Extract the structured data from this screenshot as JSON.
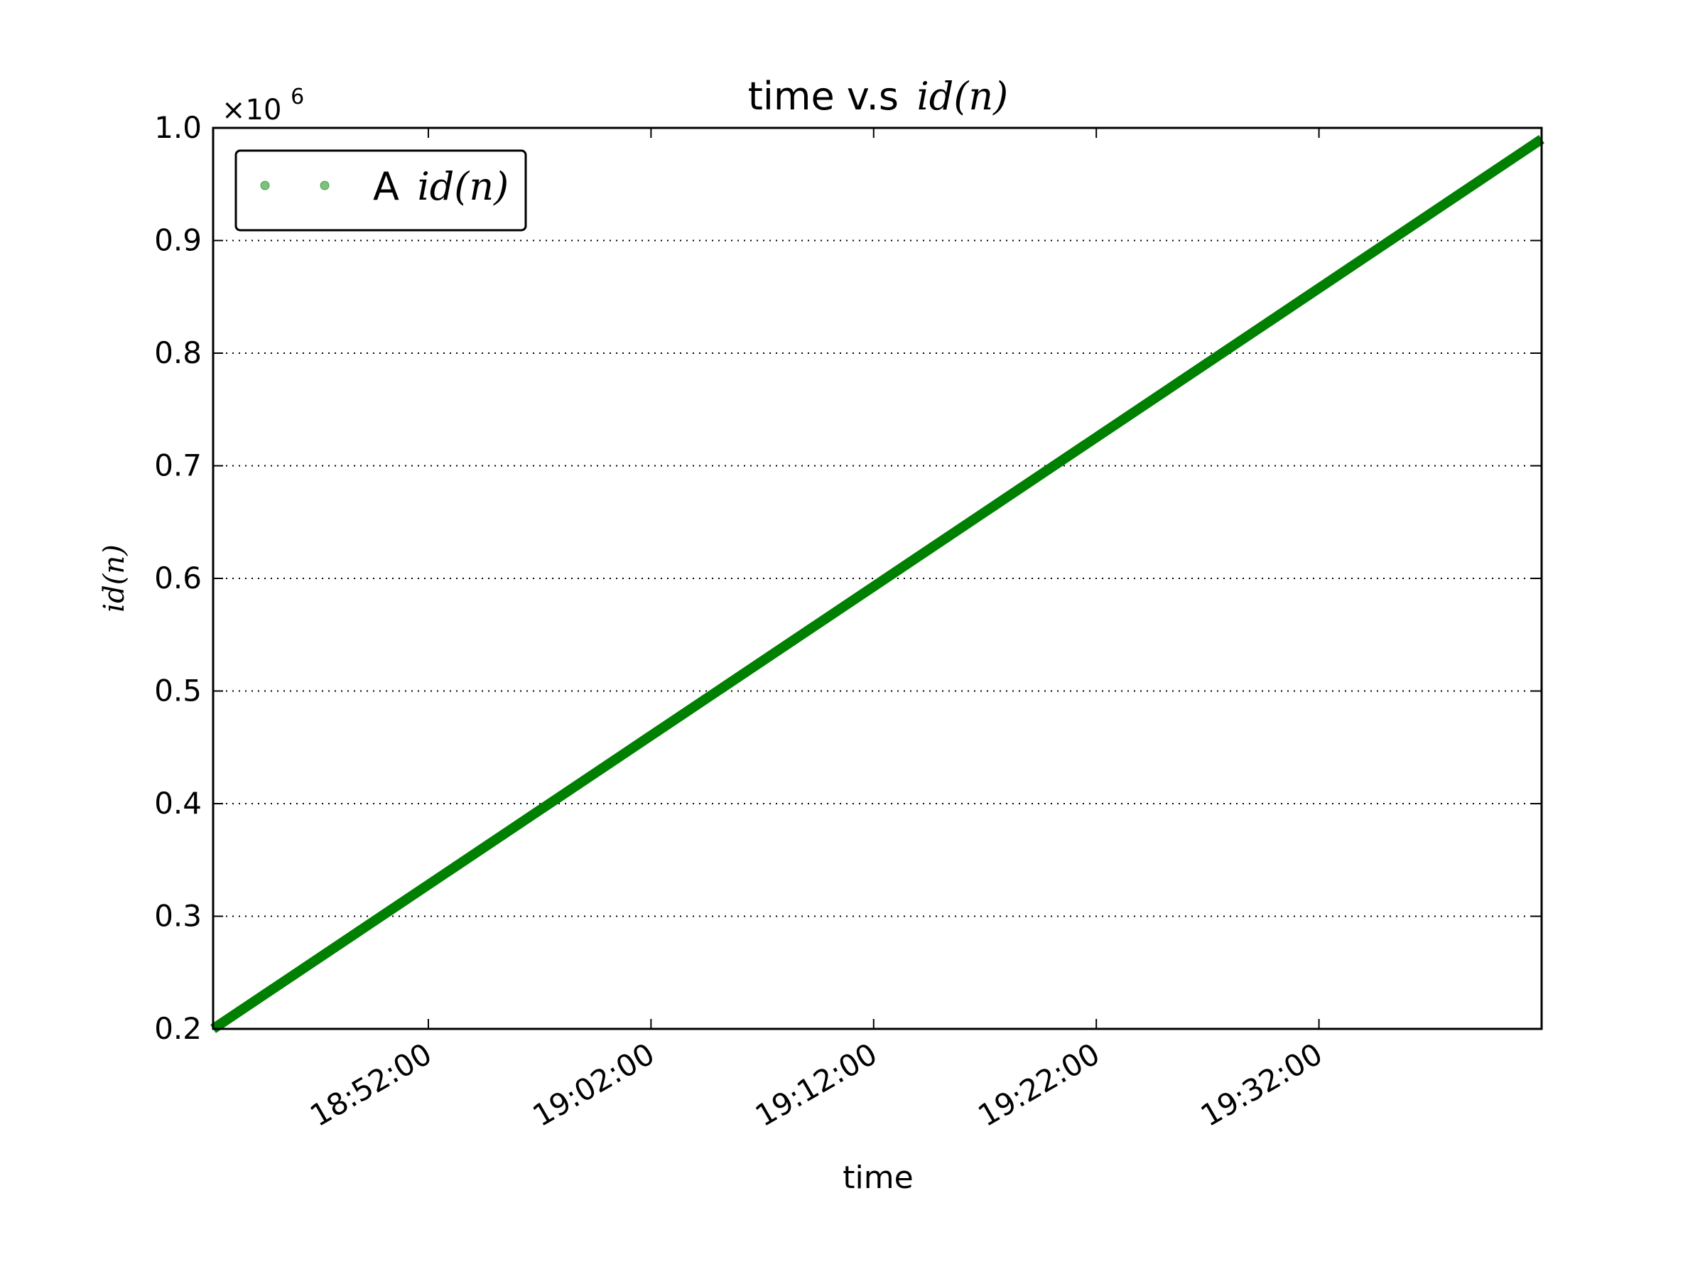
{
  "chart_data": {
    "type": "line",
    "title": "time v.s",
    "title_math": "id(n)",
    "xlabel": "time",
    "ylabel": "id(n)",
    "y_offset_text": "×10",
    "y_offset_exponent": "6",
    "xlim": [
      "18:42:20",
      "19:42:00"
    ],
    "ylim": [
      200000,
      1000000
    ],
    "xticks": [
      "18:52:00",
      "19:02:00",
      "19:12:00",
      "19:22:00",
      "19:32:00"
    ],
    "yticks": [
      "0.2",
      "0.3",
      "0.4",
      "0.5",
      "0.6",
      "0.7",
      "0.8",
      "0.9",
      "1.0"
    ],
    "ytick_values": [
      200000,
      300000,
      400000,
      500000,
      600000,
      700000,
      800000,
      900000,
      1000000
    ],
    "grid": "y-dotted",
    "legend_position": "top-left",
    "series": [
      {
        "name": "A",
        "name_math": "id(n)",
        "color": "#008000",
        "x": [
          "18:42:20",
          "19:42:00"
        ],
        "y": [
          200000,
          990000
        ]
      }
    ]
  }
}
